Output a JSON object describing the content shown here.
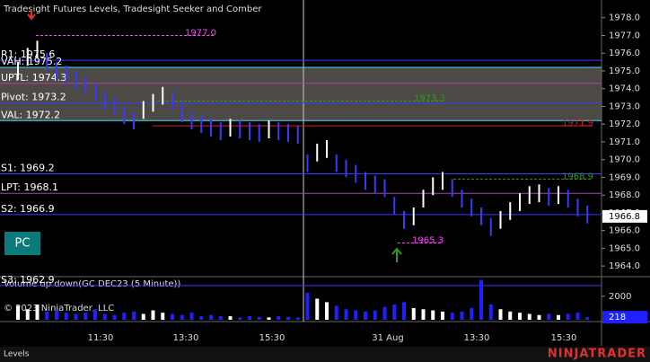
{
  "window": {
    "title": "Tradesight Futures Levels, Tradesight Seeker and Comber",
    "tab": "Levels",
    "logo": "NINJATRADER",
    "copyright": "© 2023 NinjaTrader, LLC",
    "button": "PC"
  },
  "price_axis": {
    "ylim": [
      1963.4,
      1979.0
    ],
    "ticks": [
      {
        "value": 1978,
        "label": "1978.0"
      },
      {
        "value": 1977,
        "label": "1977.0"
      },
      {
        "value": 1976,
        "label": "1976.0"
      },
      {
        "value": 1975,
        "label": "1975.0"
      },
      {
        "value": 1974,
        "label": "1974.0"
      },
      {
        "value": 1973,
        "label": "1973.0"
      },
      {
        "value": 1972,
        "label": "1972.0"
      },
      {
        "value": 1971,
        "label": "1971.0"
      },
      {
        "value": 1970,
        "label": "1970.0"
      },
      {
        "value": 1969,
        "label": "1969.0"
      },
      {
        "value": 1968,
        "label": "1968.0"
      },
      {
        "value": 1967,
        "label": "1967.0"
      },
      {
        "value": 1966,
        "label": "1966.0"
      },
      {
        "value": 1965,
        "label": "1965.0"
      },
      {
        "value": 1964,
        "label": "1964.0"
      }
    ],
    "last": {
      "value": 1966.8,
      "label": "1966.8"
    }
  },
  "levels": [
    {
      "label": "R1: 1975.6",
      "value": 1975.6,
      "color": "#3a3aff"
    },
    {
      "label": "VAH: 1975.2",
      "value": 1975.2,
      "color": "#40e0ff"
    },
    {
      "label": "UPTL: 1974.3",
      "value": 1974.3,
      "color": "#b040b0"
    },
    {
      "label": "Pivot: 1973.2",
      "value": 1973.2,
      "color": "#3a3aff"
    },
    {
      "label": "VAL: 1972.2",
      "value": 1972.2,
      "color": "#40e0ff"
    },
    {
      "label": "S1: 1969.2",
      "value": 1969.2,
      "color": "#3a3aff"
    },
    {
      "label": "LPT: 1968.1",
      "value": 1968.1,
      "color": "#b040b0"
    },
    {
      "label": "S2: 1966.9",
      "value": 1966.9,
      "color": "#3a3aff"
    },
    {
      "label": "S3: 1962.9",
      "value": 1962.9,
      "color": "#3a3aff"
    }
  ],
  "annotations": [
    {
      "label": "1977.0",
      "value": 1977.0,
      "color": "#ff40ff"
    },
    {
      "label": "1973.3",
      "value": 1973.3,
      "color": "#2a9a2a"
    },
    {
      "label": "1968.9",
      "value": 1968.9,
      "color": "#2a9a2a"
    },
    {
      "label": "1965.3",
      "value": 1965.3,
      "color": "#ff40ff"
    },
    {
      "label": "1971.9",
      "value": 1971.9,
      "color": "#d02020"
    }
  ],
  "bars": [
    [
      1974.5,
      1975.5
    ],
    [
      1975.3,
      1976.3
    ],
    [
      1975.7,
      1976.7
    ],
    [
      1975.0,
      1976.0
    ],
    [
      1974.5,
      1975.5
    ],
    [
      1974.3,
      1975.3
    ],
    [
      1974.0,
      1975.0
    ],
    [
      1973.7,
      1974.7
    ],
    [
      1973.3,
      1974.3
    ],
    [
      1972.8,
      1973.8
    ],
    [
      1972.5,
      1973.5
    ],
    [
      1972.0,
      1973.0
    ],
    [
      1971.7,
      1972.7
    ],
    [
      1972.3,
      1973.3
    ],
    [
      1972.7,
      1973.7
    ],
    [
      1973.1,
      1974.1
    ],
    [
      1972.8,
      1973.8
    ],
    [
      1972.1,
      1973.1
    ],
    [
      1971.7,
      1972.7
    ],
    [
      1971.5,
      1972.5
    ],
    [
      1971.3,
      1972.3
    ],
    [
      1971.1,
      1972.1
    ],
    [
      1971.3,
      1972.3
    ],
    [
      1971.2,
      1972.2
    ],
    [
      1971.1,
      1972.1
    ],
    [
      1971.0,
      1972.0
    ],
    [
      1971.2,
      1972.2
    ],
    [
      1971.1,
      1972.1
    ],
    [
      1971.0,
      1972.0
    ],
    [
      1970.9,
      1971.9
    ],
    [
      1969.3,
      1970.3
    ],
    [
      1969.9,
      1970.9
    ],
    [
      1970.1,
      1971.1
    ],
    [
      1969.3,
      1970.3
    ],
    [
      1969.0,
      1970.0
    ],
    [
      1968.7,
      1969.7
    ],
    [
      1968.3,
      1969.3
    ],
    [
      1968.1,
      1969.1
    ],
    [
      1967.9,
      1968.9
    ],
    [
      1966.9,
      1967.9
    ],
    [
      1966.1,
      1967.1
    ],
    [
      1966.3,
      1967.3
    ],
    [
      1967.3,
      1968.3
    ],
    [
      1968.0,
      1969.0
    ],
    [
      1968.3,
      1969.3
    ],
    [
      1967.9,
      1968.9
    ],
    [
      1967.3,
      1968.3
    ],
    [
      1966.8,
      1967.8
    ],
    [
      1966.3,
      1967.3
    ],
    [
      1965.7,
      1966.7
    ],
    [
      1966.1,
      1967.1
    ],
    [
      1966.6,
      1967.6
    ],
    [
      1967.1,
      1968.1
    ],
    [
      1967.5,
      1968.5
    ],
    [
      1967.6,
      1968.6
    ],
    [
      1967.4,
      1968.4
    ],
    [
      1967.5,
      1968.5
    ],
    [
      1967.3,
      1968.3
    ],
    [
      1966.8,
      1967.8
    ],
    [
      1966.4,
      1967.4
    ]
  ],
  "volume_axis": {
    "ylim": [
      0,
      3600
    ],
    "ticks": [
      2000
    ],
    "last": 218,
    "title": "Volume up down(GC DEC23 (5 Minute))"
  },
  "volume": [
    1200,
    900,
    1300,
    700,
    800,
    600,
    500,
    600,
    900,
    500,
    400,
    600,
    700,
    500,
    800,
    600,
    500,
    400,
    600,
    300,
    400,
    300,
    300,
    200,
    300,
    250,
    200,
    300,
    250,
    200,
    2300,
    1800,
    1500,
    1200,
    900,
    800,
    700,
    800,
    1100,
    1300,
    1500,
    1000,
    900,
    800,
    700,
    600,
    700,
    1000,
    3400,
    1300,
    900,
    700,
    600,
    500,
    400,
    500,
    400,
    500,
    600,
    218
  ],
  "time_labels": [
    "11:30",
    "13:30",
    "15:30",
    "31 Aug",
    "13:30",
    "15:30"
  ]
}
